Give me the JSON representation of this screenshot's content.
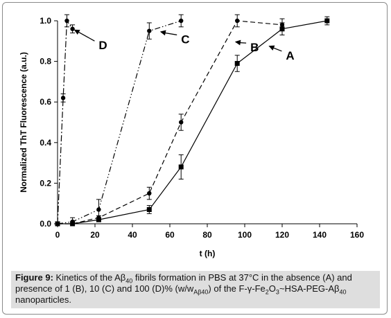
{
  "chart_data": {
    "type": "line",
    "title": "",
    "xlabel": "t (h)",
    "ylabel": "Normalized ThT Fluorescence (a.u.)",
    "xlim": [
      0,
      160
    ],
    "ylim": [
      0,
      1.0
    ],
    "xticks": [
      "0",
      "20",
      "40",
      "60",
      "80",
      "100",
      "120",
      "140",
      "160"
    ],
    "yticks": [
      "0.0",
      "0.2",
      "0.4",
      "0.6",
      "0.8",
      "1.0"
    ],
    "grid": false,
    "series": [
      {
        "name": "A",
        "marker": "square",
        "dash": "solid",
        "x": [
          0,
          8,
          22,
          49,
          66,
          96,
          120,
          144
        ],
        "y": [
          0.0,
          0.0,
          0.02,
          0.07,
          0.28,
          0.79,
          0.96,
          1.0
        ],
        "err": [
          0.01,
          0.01,
          0.01,
          0.02,
          0.06,
          0.04,
          0.03,
          0.02
        ]
      },
      {
        "name": "B",
        "marker": "circle",
        "dash": "dashed",
        "x": [
          0,
          8,
          22,
          49,
          66,
          96,
          120
        ],
        "y": [
          0.0,
          0.0,
          0.03,
          0.15,
          0.5,
          1.0,
          0.98
        ],
        "err": [
          0.01,
          0.01,
          0.01,
          0.03,
          0.04,
          0.03,
          0.03
        ]
      },
      {
        "name": "C",
        "marker": "circle",
        "dash": "dash-dot-dot",
        "x": [
          0,
          8,
          22,
          49,
          66
        ],
        "y": [
          0.0,
          0.01,
          0.07,
          0.95,
          1.0
        ],
        "err": [
          0.01,
          0.02,
          0.05,
          0.04,
          0.03
        ]
      },
      {
        "name": "D",
        "marker": "circle",
        "dash": "dash-dot",
        "x": [
          0,
          3,
          5,
          8
        ],
        "y": [
          0.0,
          0.62,
          1.0,
          0.96
        ],
        "err": [
          0.01,
          0.02,
          0.03,
          0.02
        ]
      }
    ],
    "annotations": [
      {
        "label": "D",
        "at": [
          8,
          0.96
        ],
        "label_at": [
          22,
          0.88
        ]
      },
      {
        "label": "C",
        "at": [
          54,
          0.95
        ],
        "label_at": [
          66,
          0.91
        ]
      },
      {
        "label": "B",
        "at": [
          94,
          0.9
        ],
        "label_at": [
          103,
          0.87
        ]
      },
      {
        "label": "A",
        "at": [
          112,
          0.88
        ],
        "label_at": [
          122,
          0.83
        ]
      }
    ]
  },
  "caption": {
    "label": "Figure 9:",
    "p1": " Kinetics of the Aβ",
    "sub1": "40",
    "p2": " fibrils formation in PBS at 37°C in the absence (A) and presence of 1 (B), 10 (C) and 100 (D)% (w/w",
    "sub2": "Aβ40",
    "p3": ") of the F-γ-Fe",
    "sub3": "2",
    "p4": "O",
    "sub4": "3",
    "p5": "~HSA-PEG-Aβ",
    "sub5": "40",
    "p6": " nanoparticles."
  }
}
